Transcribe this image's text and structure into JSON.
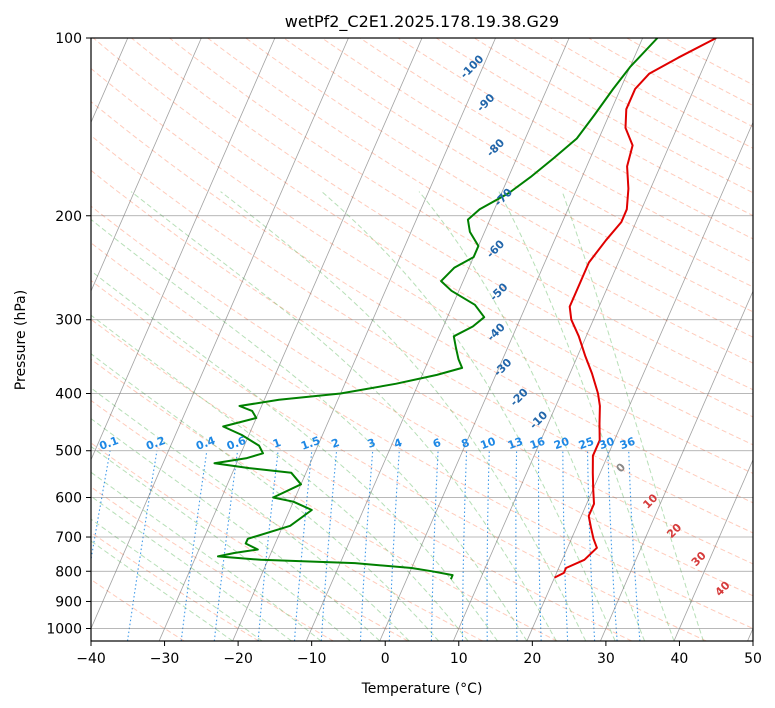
{
  "chart_data": {
    "type": "line",
    "title": "wetPf2_C2E1.2025.178.19.38.G29",
    "xlabel": "Temperature (°C)",
    "ylabel": "Pressure (hPa)",
    "xlim": [
      -40,
      50
    ],
    "ylim": [
      1050,
      100
    ],
    "y_scale": "log",
    "grid": true,
    "x_ticks": [
      -40,
      -30,
      -20,
      -10,
      0,
      10,
      20,
      30,
      40,
      50
    ],
    "y_ticks": [
      100,
      200,
      300,
      400,
      500,
      600,
      700,
      800,
      900,
      1000
    ],
    "series": [
      {
        "role": "temperature",
        "color": "#e00000",
        "points": [
          [
            10,
            100
          ],
          [
            6,
            108
          ],
          [
            3,
            115
          ],
          [
            2,
            122
          ],
          [
            2,
            132
          ],
          [
            3,
            142
          ],
          [
            5,
            152
          ],
          [
            5.5,
            165
          ],
          [
            7,
            180
          ],
          [
            8,
            195
          ],
          [
            8,
            205
          ],
          [
            7,
            220
          ],
          [
            6,
            240
          ],
          [
            6,
            260
          ],
          [
            6,
            285
          ],
          [
            7,
            300
          ],
          [
            9,
            320
          ],
          [
            11,
            345
          ],
          [
            13,
            370
          ],
          [
            15,
            400
          ],
          [
            16,
            420
          ],
          [
            17,
            450
          ],
          [
            18,
            480
          ],
          [
            18,
            510
          ],
          [
            19,
            545
          ],
          [
            20,
            580
          ],
          [
            21,
            615
          ],
          [
            21,
            645
          ],
          [
            22,
            675
          ],
          [
            23,
            705
          ],
          [
            24,
            730
          ],
          [
            23,
            765
          ],
          [
            21,
            790
          ],
          [
            21,
            805
          ],
          [
            20,
            820
          ]
        ]
      },
      {
        "role": "dewpoint",
        "color": "#008000",
        "points": [
          [
            2,
            100
          ],
          [
            0,
            112
          ],
          [
            -1,
            122
          ],
          [
            -2,
            135
          ],
          [
            -3,
            148
          ],
          [
            -5,
            160
          ],
          [
            -7,
            172
          ],
          [
            -9,
            183
          ],
          [
            -12,
            195
          ],
          [
            -13,
            203
          ],
          [
            -12,
            213
          ],
          [
            -10,
            225
          ],
          [
            -10,
            235
          ],
          [
            -12,
            245
          ],
          [
            -13,
            258
          ],
          [
            -11,
            268
          ],
          [
            -7,
            283
          ],
          [
            -5,
            297
          ],
          [
            -6,
            308
          ],
          [
            -8,
            320
          ],
          [
            -7,
            335
          ],
          [
            -6,
            350
          ],
          [
            -5,
            362
          ],
          [
            -8,
            372
          ],
          [
            -13,
            385
          ],
          [
            -20,
            400
          ],
          [
            -28,
            410
          ],
          [
            -33,
            420
          ],
          [
            -31,
            428
          ],
          [
            -30,
            440
          ],
          [
            -34,
            455
          ],
          [
            -31,
            470
          ],
          [
            -28,
            490
          ],
          [
            -27,
            505
          ],
          [
            -29,
            515
          ],
          [
            -33,
            525
          ],
          [
            -28,
            535
          ],
          [
            -22,
            545
          ],
          [
            -20,
            570
          ],
          [
            -23,
            600
          ],
          [
            -20,
            610
          ],
          [
            -17,
            630
          ],
          [
            -19,
            670
          ],
          [
            -24,
            705
          ],
          [
            -24,
            718
          ],
          [
            -22,
            735
          ],
          [
            -25,
            745
          ],
          [
            -27,
            755
          ],
          [
            -21,
            765
          ],
          [
            -8,
            775
          ],
          [
            0,
            790
          ],
          [
            3,
            800
          ],
          [
            6,
            812
          ],
          [
            6,
            825
          ]
        ]
      }
    ],
    "dry_adiabat_labels": [
      {
        "text": "-100",
        "temp": -21,
        "p": 113
      },
      {
        "text": "-90",
        "temp": -17,
        "p": 130
      },
      {
        "text": "-80",
        "temp": -13,
        "p": 155
      },
      {
        "text": "-70",
        "temp": -9,
        "p": 188
      },
      {
        "text": "-60",
        "temp": -7,
        "p": 230
      },
      {
        "text": "-50",
        "temp": -4,
        "p": 272
      },
      {
        "text": "-40",
        "temp": -2,
        "p": 318
      },
      {
        "text": "-30",
        "temp": 1,
        "p": 365
      },
      {
        "text": "-20",
        "temp": 5,
        "p": 410
      },
      {
        "text": "-10",
        "temp": 9,
        "p": 448
      }
    ],
    "mixing_ratio_labels": [
      "0.1",
      "0.2",
      "0.4",
      "0.6",
      "1",
      "1.5",
      "2",
      "3",
      "4",
      "6",
      "8",
      "10",
      "13",
      "16",
      "20",
      "25",
      "30",
      "36"
    ],
    "moist_adiabat_labels": [
      {
        "text": "0",
        "temp": 23,
        "p": 540,
        "color": "#888888"
      },
      {
        "text": "10",
        "temp": 29,
        "p": 615,
        "color": "#d63a3a"
      },
      {
        "text": "20",
        "temp": 34,
        "p": 690,
        "color": "#d63a3a"
      },
      {
        "text": "30",
        "temp": 39,
        "p": 770,
        "color": "#d63a3a"
      },
      {
        "text": "40",
        "temp": 44,
        "p": 865,
        "color": "#d63a3a"
      }
    ],
    "colors": {
      "isotherm": "#555555",
      "isobar": "#777777",
      "dry_adiabat": "#ff8c69",
      "moist_adiabat": "#5fb85f",
      "mixing_ratio": "#1e88e5",
      "dry_adiabat_label": "#2266aa",
      "mixing_label": "#1e88e5"
    }
  }
}
